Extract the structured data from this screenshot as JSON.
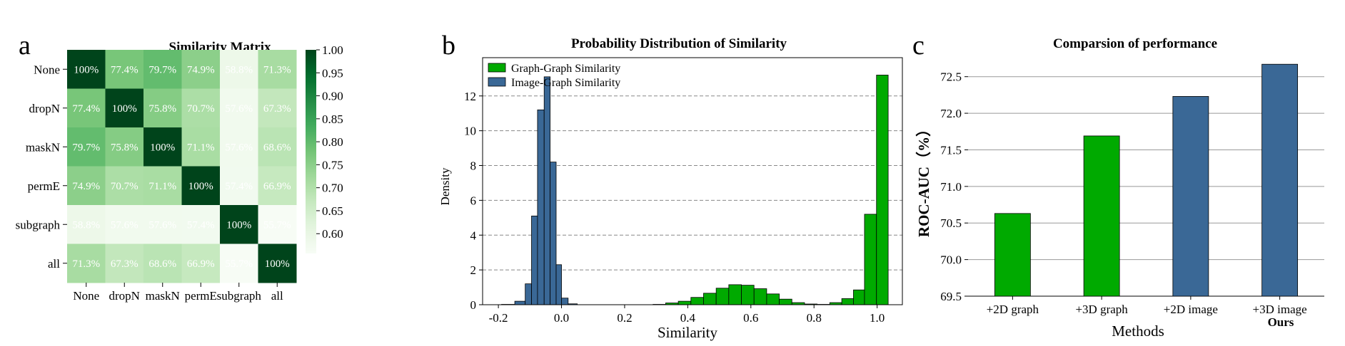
{
  "chart_data": [
    {
      "panel": "a",
      "type": "heatmap",
      "title": "Similarity Matrix",
      "rows": [
        "None",
        "dropN",
        "maskN",
        "permE",
        "subgraph",
        "all"
      ],
      "cols": [
        "None",
        "dropN",
        "maskN",
        "permE",
        "subgraph",
        "all"
      ],
      "values": [
        [
          100,
          77.4,
          79.7,
          74.9,
          58.8,
          71.3
        ],
        [
          77.4,
          100,
          75.8,
          70.7,
          57.6,
          67.3
        ],
        [
          79.7,
          75.8,
          100,
          71.1,
          57.6,
          68.6
        ],
        [
          74.9,
          70.7,
          71.1,
          100,
          57.4,
          66.9
        ],
        [
          58.8,
          57.6,
          57.6,
          57.4,
          100,
          55.7
        ],
        [
          71.3,
          67.3,
          68.6,
          66.9,
          55.7,
          100
        ]
      ],
      "cell_labels": [
        [
          "100%",
          "77.4%",
          "79.7%",
          "74.9%",
          "58.8%",
          "71.3%"
        ],
        [
          "77.4%",
          "100%",
          "75.8%",
          "70.7%",
          "57.6%",
          "67.3%"
        ],
        [
          "79.7%",
          "75.8%",
          "100%",
          "71.1%",
          "57.6%",
          "68.6%"
        ],
        [
          "74.9%",
          "70.7%",
          "71.1%",
          "100%",
          "57.4%",
          "66.9%"
        ],
        [
          "58.8%",
          "57.6%",
          "57.6%",
          "57.4%",
          "100%",
          "55.7%"
        ],
        [
          "71.3%",
          "67.3%",
          "68.6%",
          "66.9%",
          "55.7%",
          "100%"
        ]
      ],
      "colorbar": {
        "min": 0.557,
        "max": 1.0,
        "ticks": [
          "0.60",
          "0.65",
          "0.70",
          "0.75",
          "0.80",
          "0.85",
          "0.90",
          "0.95",
          "1.00"
        ],
        "colormap": "Greens"
      }
    },
    {
      "panel": "b",
      "type": "histogram",
      "title": "Probability Distribution of Similarity",
      "xlabel": "Similarity",
      "ylabel": "Density",
      "xlim": [
        -0.25,
        1.08
      ],
      "ylim": [
        0,
        14.2
      ],
      "xticks": [
        "-0.2",
        "0.0",
        "0.2",
        "0.4",
        "0.6",
        "0.8",
        "1.0"
      ],
      "yticks": [
        "0",
        "2",
        "4",
        "6",
        "8",
        "10",
        "12"
      ],
      "grid": "horizontal-dashed",
      "legend_position": "top-left",
      "series": [
        {
          "name": "Graph-Graph Similarity",
          "color": "#00aa00",
          "bins": [
            [
              0.29,
              0.33,
              0.02
            ],
            [
              0.33,
              0.37,
              0.1
            ],
            [
              0.37,
              0.41,
              0.2
            ],
            [
              0.41,
              0.45,
              0.42
            ],
            [
              0.45,
              0.49,
              0.66
            ],
            [
              0.49,
              0.53,
              0.95
            ],
            [
              0.53,
              0.57,
              1.15
            ],
            [
              0.57,
              0.61,
              1.12
            ],
            [
              0.61,
              0.65,
              0.92
            ],
            [
              0.65,
              0.69,
              0.62
            ],
            [
              0.69,
              0.73,
              0.32
            ],
            [
              0.73,
              0.77,
              0.12
            ],
            [
              0.77,
              0.81,
              0.04
            ],
            [
              0.81,
              0.85,
              0.02
            ],
            [
              0.85,
              0.888,
              0.12
            ],
            [
              0.888,
              0.925,
              0.35
            ],
            [
              0.925,
              0.96,
              0.85
            ],
            [
              0.96,
              0.998,
              5.2
            ],
            [
              0.998,
              1.035,
              13.2
            ]
          ]
        },
        {
          "name": "Image-Graph Similarity",
          "color": "#3a6896",
          "bins": [
            [
              -0.19,
              -0.148,
              0.02
            ],
            [
              -0.148,
              -0.115,
              0.2
            ],
            [
              -0.115,
              -0.095,
              1.2
            ],
            [
              -0.095,
              -0.076,
              5.1
            ],
            [
              -0.076,
              -0.055,
              11.2
            ],
            [
              -0.055,
              -0.036,
              13.1
            ],
            [
              -0.036,
              -0.017,
              8.2
            ],
            [
              -0.017,
              0.0,
              2.3
            ],
            [
              0.0,
              0.021,
              0.38
            ],
            [
              0.021,
              0.05,
              0.05
            ]
          ]
        }
      ]
    },
    {
      "panel": "c",
      "type": "bar",
      "title": "Comparsion of performance",
      "xlabel": "Methods",
      "ylabel": "ROC-AUC（%）",
      "ylim": [
        69.5,
        72.75
      ],
      "yticks": [
        "69.5",
        "70.0",
        "70.5",
        "71.0",
        "71.5",
        "72.0",
        "72.5"
      ],
      "grid": "horizontal",
      "categories": [
        "+2D graph",
        "+3D graph",
        "+2D image",
        "+3D image"
      ],
      "values": [
        70.63,
        71.69,
        72.23,
        72.67
      ],
      "colors": [
        "#00aa00",
        "#00aa00",
        "#3a6896",
        "#3a6896"
      ],
      "annotation": "Ours"
    }
  ],
  "panel_letters": [
    "a",
    "b",
    "c"
  ]
}
